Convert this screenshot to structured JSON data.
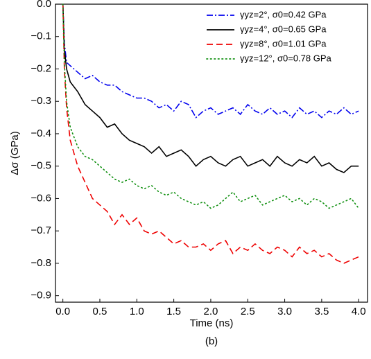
{
  "chart_data": {
    "type": "line",
    "x_label": "Time (ns)",
    "y_label": "Δσ (GPa)",
    "caption": "(b)",
    "x": [
      0,
      0.02,
      0.05,
      0.1,
      0.2,
      0.3,
      0.4,
      0.5,
      0.6,
      0.7,
      0.8,
      0.9,
      1.0,
      1.1,
      1.2,
      1.3,
      1.4,
      1.5,
      1.6,
      1.7,
      1.8,
      1.9,
      2.0,
      2.1,
      2.2,
      2.3,
      2.4,
      2.5,
      2.6,
      2.7,
      2.8,
      2.9,
      3.0,
      3.1,
      3.2,
      3.3,
      3.4,
      3.5,
      3.6,
      3.7,
      3.8,
      3.9,
      4.0
    ],
    "series": [
      {
        "name": "γyz=2°, σ0=0.42 GPa",
        "color": "#0000ee",
        "style": "dashdot",
        "values": [
          0,
          -0.12,
          -0.18,
          -0.19,
          -0.21,
          -0.23,
          -0.22,
          -0.24,
          -0.25,
          -0.25,
          -0.27,
          -0.28,
          -0.29,
          -0.29,
          -0.3,
          -0.32,
          -0.31,
          -0.33,
          -0.3,
          -0.31,
          -0.35,
          -0.33,
          -0.32,
          -0.34,
          -0.33,
          -0.32,
          -0.34,
          -0.31,
          -0.33,
          -0.34,
          -0.32,
          -0.34,
          -0.33,
          -0.35,
          -0.32,
          -0.34,
          -0.33,
          -0.35,
          -0.33,
          -0.34,
          -0.32,
          -0.34,
          -0.33
        ]
      },
      {
        "name": "γyz=4°, σ0=0.65 GPa",
        "color": "#000000",
        "style": "solid",
        "values": [
          0,
          -0.14,
          -0.2,
          -0.24,
          -0.27,
          -0.31,
          -0.33,
          -0.35,
          -0.38,
          -0.37,
          -0.4,
          -0.42,
          -0.43,
          -0.44,
          -0.46,
          -0.44,
          -0.47,
          -0.46,
          -0.45,
          -0.47,
          -0.5,
          -0.48,
          -0.47,
          -0.49,
          -0.5,
          -0.48,
          -0.47,
          -0.5,
          -0.49,
          -0.48,
          -0.5,
          -0.47,
          -0.49,
          -0.5,
          -0.48,
          -0.49,
          -0.47,
          -0.5,
          -0.49,
          -0.51,
          -0.52,
          -0.5,
          -0.5
        ]
      },
      {
        "name": "γyz=8°, σ0=1.01 GPa",
        "color": "#ee0000",
        "style": "dashed",
        "values": [
          0,
          -0.2,
          -0.32,
          -0.42,
          -0.5,
          -0.55,
          -0.6,
          -0.62,
          -0.64,
          -0.68,
          -0.65,
          -0.68,
          -0.66,
          -0.7,
          -0.71,
          -0.7,
          -0.72,
          -0.74,
          -0.73,
          -0.75,
          -0.75,
          -0.74,
          -0.76,
          -0.74,
          -0.73,
          -0.77,
          -0.75,
          -0.76,
          -0.74,
          -0.76,
          -0.77,
          -0.75,
          -0.76,
          -0.78,
          -0.75,
          -0.77,
          -0.76,
          -0.78,
          -0.77,
          -0.79,
          -0.8,
          -0.79,
          -0.78
        ]
      },
      {
        "name": "γyz=12°, σ0=0.78 GPa",
        "color": "#109010",
        "style": "dotted",
        "values": [
          0,
          -0.18,
          -0.3,
          -0.38,
          -0.44,
          -0.47,
          -0.48,
          -0.5,
          -0.52,
          -0.54,
          -0.55,
          -0.54,
          -0.56,
          -0.57,
          -0.56,
          -0.58,
          -0.59,
          -0.58,
          -0.6,
          -0.61,
          -0.62,
          -0.61,
          -0.63,
          -0.62,
          -0.6,
          -0.58,
          -0.61,
          -0.6,
          -0.59,
          -0.62,
          -0.61,
          -0.6,
          -0.59,
          -0.61,
          -0.6,
          -0.62,
          -0.6,
          -0.61,
          -0.63,
          -0.62,
          -0.61,
          -0.6,
          -0.63
        ]
      }
    ],
    "xlim": [
      -0.1,
      4.12
    ],
    "ylim": [
      -0.92,
      0
    ],
    "xticks": [
      {
        "value": 0,
        "label": "0.0"
      },
      0.5,
      {
        "value": 1,
        "label": "1.0"
      },
      1.5,
      {
        "value": 2,
        "label": "2.0"
      },
      2.5,
      {
        "value": 3,
        "label": "3.0"
      },
      3.5,
      {
        "value": 4,
        "label": "4.0"
      }
    ],
    "yticks": [
      {
        "value": 0,
        "label": "0.0"
      },
      {
        "value": -0.1,
        "label": "−0.1"
      },
      {
        "value": -0.2,
        "label": "−0.2"
      },
      {
        "value": -0.3,
        "label": "−0.3"
      },
      {
        "value": -0.4,
        "label": "−0.4"
      },
      {
        "value": -0.5,
        "label": "−0.5"
      },
      {
        "value": -0.6,
        "label": "−0.6"
      },
      {
        "value": -0.7,
        "label": "−0.7"
      },
      {
        "value": -0.8,
        "label": "−0.8"
      },
      {
        "value": -0.9,
        "label": "−0.9"
      }
    ],
    "grid": false,
    "legend": "top-right"
  }
}
